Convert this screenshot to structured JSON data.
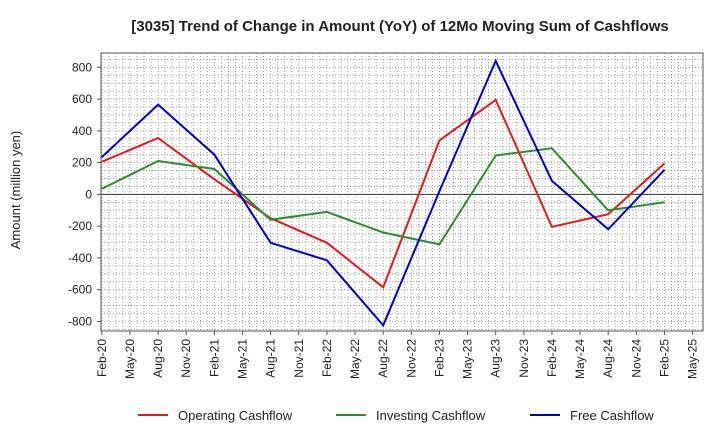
{
  "chart_data": {
    "type": "line",
    "title": "[3035]  Trend of Change in Amount (YoY) of 12Mo Moving Sum of Cashflows",
    "xlabel": "",
    "ylabel": "Amount (million yen)",
    "ylim": [
      -860,
      890
    ],
    "yticks": [
      800,
      600,
      400,
      200,
      0,
      -200,
      -400,
      -600,
      -800
    ],
    "categories": [
      "Feb-20",
      "May-20",
      "Aug-20",
      "Nov-20",
      "Feb-21",
      "May-21",
      "Aug-21",
      "Nov-21",
      "Feb-22",
      "May-22",
      "Aug-22",
      "Nov-22",
      "Feb-23",
      "May-23",
      "Aug-23",
      "Nov-23",
      "Feb-24",
      "May-24",
      "Aug-24",
      "Nov-24",
      "Feb-25",
      "May-25"
    ],
    "grid": true,
    "legend_position": "bottom",
    "series": [
      {
        "name": "Operating Cashflow",
        "color": "#e31a1c",
        "values": [
          205,
          null,
          355,
          null,
          95,
          null,
          -150,
          null,
          -305,
          null,
          -585,
          null,
          340,
          null,
          595,
          null,
          -205,
          null,
          -125,
          null,
          195,
          null
        ]
      },
      {
        "name": "Investing Cashflow",
        "color": "#2e8b2e",
        "values": [
          35,
          null,
          210,
          null,
          160,
          null,
          -160,
          null,
          -110,
          null,
          -240,
          null,
          -315,
          null,
          245,
          null,
          290,
          null,
          -100,
          null,
          -50,
          null
        ]
      },
      {
        "name": "Free Cashflow",
        "color": "#0000cc",
        "values": [
          235,
          null,
          565,
          null,
          250,
          null,
          -305,
          null,
          -415,
          null,
          -825,
          null,
          20,
          null,
          840,
          null,
          85,
          null,
          -220,
          null,
          155,
          null
        ]
      }
    ]
  }
}
